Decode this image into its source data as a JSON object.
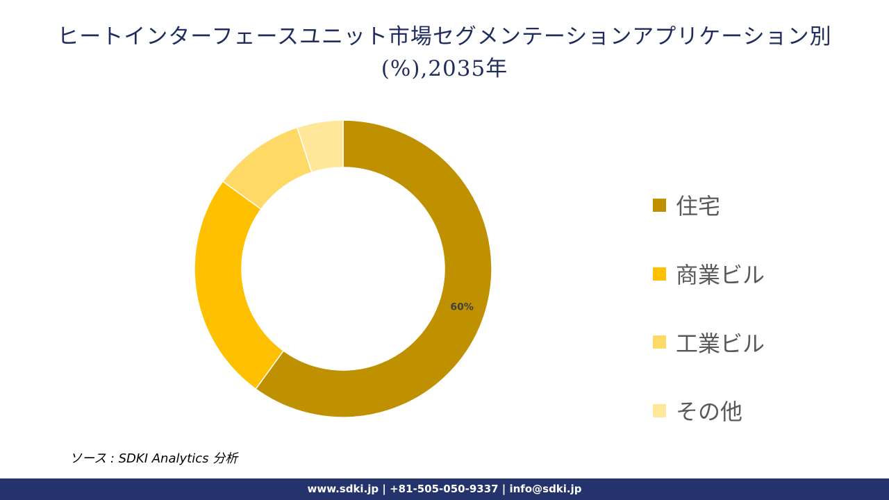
{
  "chart_data": {
    "type": "donut",
    "title": "ヒートインターフェースユニット市場セグメンテーションアプリケーション別(%),2035年",
    "categories": [
      "住宅",
      "商業ビル",
      "工業ビル",
      "その他"
    ],
    "values": [
      60,
      25,
      10,
      5
    ],
    "value_labels": [
      "60%",
      null,
      null,
      null
    ],
    "colors": [
      "#bf9000",
      "#ffc000",
      "#ffd966",
      "#ffe699"
    ]
  },
  "source": "ソース : SDKI Analytics 分析",
  "footer": "www.sdki.jp | +81-505-050-9337 | info@sdki.jp"
}
